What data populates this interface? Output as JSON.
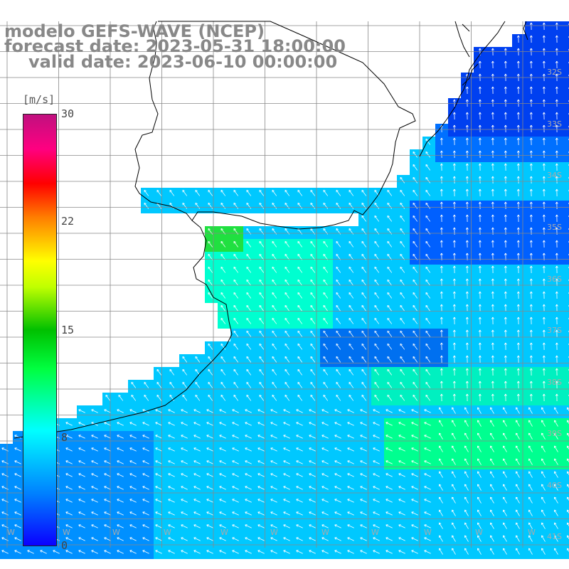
{
  "title": {
    "line1": "modelo GEFS-WAVE (NCEP)",
    "line2": "forecast date: 2023-05-31 18:00:00",
    "line3": "valid date: 2023-06-10 00:00:00"
  },
  "colorbar": {
    "unit": "[m/s]",
    "ticks": [
      "30",
      "22",
      "15",
      "8",
      "0"
    ],
    "colors": [
      "#0a00ff",
      "#00ffff",
      "#00ff40",
      "#ffff00",
      "#ff0000",
      "#c0107f"
    ]
  },
  "lat_labels": [
    "32S",
    "33S",
    "34S",
    "35S",
    "36S",
    "37S",
    "38S",
    "39S",
    "40S",
    "41S"
  ],
  "lon_labels": [
    "W",
    "W",
    "W",
    "W",
    "W",
    "W",
    "W",
    "W",
    "W",
    "W",
    "W"
  ],
  "field": {
    "land_color": "#ffffff",
    "grid_color": "#888888",
    "arrow_color": "#ffffff"
  }
}
